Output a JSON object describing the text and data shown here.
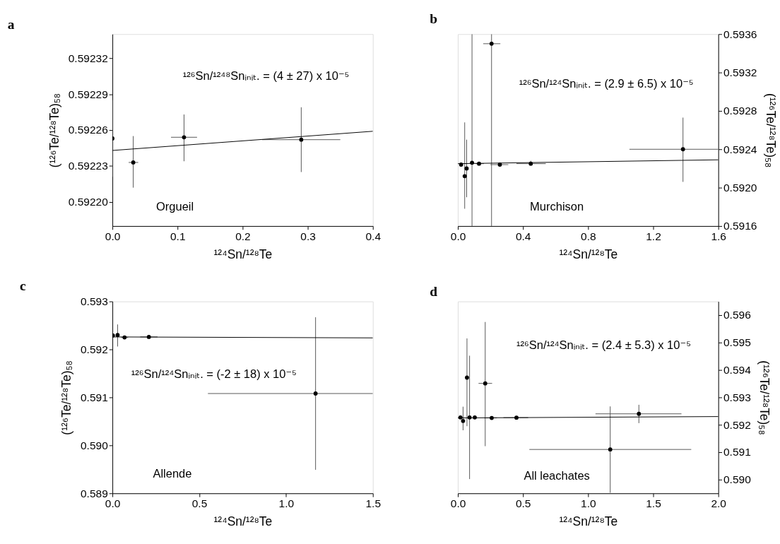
{
  "chart_data": [
    {
      "type": "scatter",
      "title": "a",
      "xlabel": "¹²⁴Sn/¹²⁸Te",
      "ylabel": "(¹²⁶Te/¹²⁸Te)₅₈",
      "xlim": [
        0,
        0.4
      ],
      "xticks": [
        {
          "value": 0,
          "label": "0.0"
        },
        0.1,
        0.2,
        0.3,
        0.4
      ],
      "ylim": [
        0.59218,
        0.59234
      ],
      "yticks": [
        {
          "value": 0.5922,
          "label": "0.59220"
        },
        0.59223,
        0.59226,
        0.59229,
        0.59232
      ],
      "annotations": [
        "¹²⁶Sn/¹²⁴⁸Snᵢₙᵢₜ. = (4 ± 27) x 10⁻⁵",
        "Orgueil"
      ],
      "series": [
        {
          "marker": "circle",
          "color": "#000000",
          "x": [
            0.0,
            0.032,
            0.11,
            0.29
          ],
          "values": [
            0.592253,
            0.592233,
            0.592254,
            0.592252
          ],
          "errors": [
            [
              0.592221,
              0.592285
            ],
            [
              0.592212,
              0.592255
            ],
            [
              0.592234,
              0.592273
            ],
            [
              0.592225,
              0.592279
            ]
          ],
          "xerrors": [
            null,
            [
              0.025,
              0.0396
            ],
            [
              0.09,
              0.13
            ],
            [
              0.23,
              0.35
            ]
          ]
        },
        {
          "type": "line",
          "color": "#000000",
          "x": [
            0.0,
            0.4
          ],
          "values": [
            0.592243,
            0.592259
          ]
        }
      ]
    },
    {
      "type": "scatter",
      "title": "b",
      "xlabel": "¹²⁴Sn/¹²⁸Te",
      "y2label": "(¹²⁶Te/¹²⁸Te)₅₈",
      "xlim": [
        0,
        1.6
      ],
      "xticks": [
        {
          "value": 0,
          "label": "0.0"
        },
        0.4,
        0.8,
        1.2,
        1.6
      ],
      "y2lim": [
        0.5916,
        0.5936
      ],
      "y2ticks": [
        0.5916,
        {
          "value": 0.592,
          "label": "0.5920"
        },
        0.5924,
        0.5928,
        0.5932,
        0.5936
      ],
      "annotations": [
        "¹²⁶Sn/¹²⁴Snᵢₙᵢₜ. = (2.9 ± 6.5) x 10⁻⁵",
        "Murchison"
      ],
      "series": [
        {
          "marker": "circle",
          "axis": "y2",
          "color": "#000000",
          "x": [
            0.02,
            0.042,
            0.054,
            0.087,
            0.13,
            0.207,
            0.258,
            0.448,
            1.383
          ],
          "values": [
            0.59224,
            0.59212,
            0.5922,
            0.59226,
            0.59225,
            0.5935,
            0.59224,
            0.59225,
            0.5924
          ],
          "errors": [
            null,
            [
              0.59178,
              0.59268
            ],
            [
              0.5919,
              0.5925
            ],
            [
              0.5916,
              0.5936
            ],
            null,
            [
              0.5916,
              0.5936
            ],
            null,
            [
              0.59223,
              0.59228
            ],
            [
              0.59206,
              0.59273
            ]
          ],
          "xerrors": [
            null,
            null,
            null,
            null,
            [
              0.11,
              0.16
            ],
            [
              0.156,
              0.261
            ],
            [
              0.2,
              0.31
            ],
            [
              0.36,
              0.54
            ],
            [
              1.054,
              1.6
            ]
          ]
        },
        {
          "type": "line",
          "axis": "y2",
          "color": "#000000",
          "x": [
            0.0,
            1.6
          ],
          "values": [
            0.59225,
            0.59229
          ]
        }
      ]
    },
    {
      "type": "scatter",
      "title": "c",
      "xlabel": "¹²⁴Sn/¹²⁸Te",
      "ylabel": "(¹²⁶Te/¹²⁸Te)₅₈",
      "xlim": [
        0,
        1.5
      ],
      "xticks": [
        {
          "value": 0,
          "label": "0.0"
        },
        0.5,
        {
          "value": 1,
          "label": "1.0"
        },
        1.5
      ],
      "ylim": [
        0.589,
        0.593
      ],
      "yticks": [
        0.589,
        {
          "value": 0.59,
          "label": "0.590"
        },
        0.591,
        0.592,
        0.593
      ],
      "annotations": [
        "¹²⁶Sn/¹²⁴Snᵢₙᵢₜ. = (-2 ± 18) x 10⁻⁵",
        "Allende"
      ],
      "series": [
        {
          "marker": "circle",
          "color": "#000000",
          "x": [
            0.003,
            0.03,
            0.07,
            0.21,
            1.17
          ],
          "values": [
            0.59229,
            0.5923,
            0.59225,
            0.59226,
            0.59108
          ],
          "errors": [
            null,
            [
              0.59206,
              0.59252
            ],
            null,
            null,
            [
              0.58949,
              0.59267
            ]
          ],
          "xerrors": [
            null,
            null,
            [
              0.05,
              0.09
            ],
            [
              0.16,
              0.26
            ],
            [
              0.55,
              1.5
            ]
          ]
        },
        {
          "type": "line",
          "color": "#000000",
          "x": [
            0.0,
            1.5
          ],
          "values": [
            0.59226,
            0.59224
          ]
        }
      ]
    },
    {
      "type": "scatter",
      "title": "d",
      "xlabel": "¹²⁴Sn/¹²⁸Te",
      "y2label": "(¹²⁶Te/¹²⁸Te)₅₈",
      "xlim": [
        0,
        2.0
      ],
      "xticks": [
        {
          "value": 0,
          "label": "0.0"
        },
        0.5,
        {
          "value": 1,
          "label": "1.0"
        },
        1.5,
        {
          "value": 2,
          "label": "2.0"
        }
      ],
      "y2lim": [
        0.5895,
        0.5965
      ],
      "y2ticks": [
        {
          "value": 0.59,
          "label": "0.590"
        },
        0.591,
        0.592,
        0.593,
        0.594,
        0.595,
        0.596
      ],
      "annotations": [
        "¹²⁶Sn/¹²⁴Snᵢₙᵢₜ. = (2.4 ± 5.3) x 10⁻⁵",
        "All leachates"
      ],
      "series": [
        {
          "marker": "circle",
          "axis": "y2",
          "color": "#000000",
          "x": [
            0.02,
            0.04,
            0.07,
            0.09,
            0.13,
            0.21,
            0.26,
            0.45,
            1.39,
            1.17
          ],
          "values": [
            0.59227,
            0.59214,
            0.59372,
            0.59227,
            0.59227,
            0.59351,
            0.59225,
            0.59226,
            0.5924,
            0.5911
          ],
          "errors": [
            null,
            [
              0.5918,
              0.59266
            ],
            [
              0.59195,
              0.59515
            ],
            [
              0.59002,
              0.59452
            ],
            null,
            [
              0.59122,
              0.59575
            ],
            null,
            null,
            [
              0.59206,
              0.59273
            ],
            [
              0.58952,
              0.59267
            ]
          ],
          "xerrors": [
            null,
            null,
            [
              0.06,
              0.08
            ],
            null,
            null,
            [
              0.159,
              0.263
            ],
            [
              0.2,
              0.3
            ],
            [
              0.35,
              0.54
            ],
            [
              1.057,
              1.717
            ],
            [
              0.549,
              1.792
            ]
          ]
        },
        {
          "type": "line",
          "axis": "y2",
          "color": "#000000",
          "x": [
            0.0,
            2.0
          ],
          "values": [
            0.59225,
            0.5923
          ]
        }
      ]
    }
  ]
}
